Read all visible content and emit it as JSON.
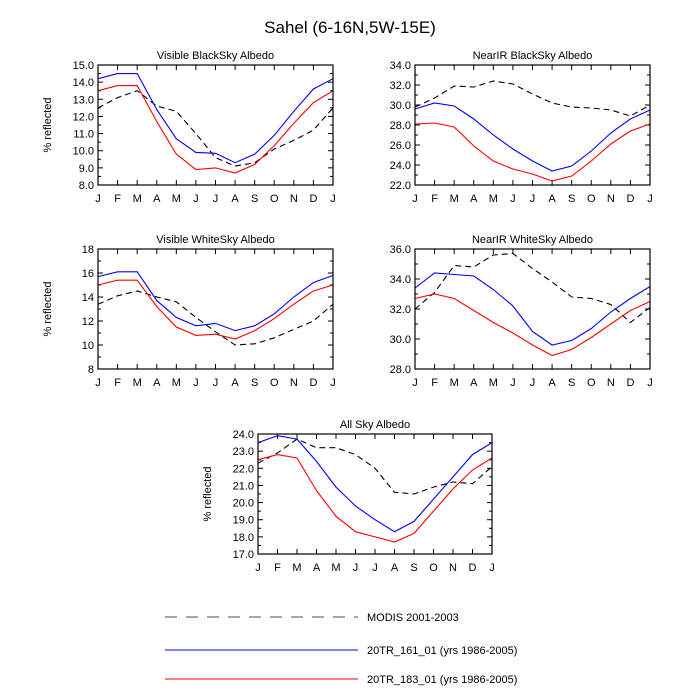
{
  "figure": {
    "title": "Sahel (6-16N,5W-15E)"
  },
  "legend": [
    {
      "name": "MODIS 2001-2003",
      "color": "#000000",
      "dash": "dashed"
    },
    {
      "name": "20TR_161_01 (yrs 1986-2005)",
      "color": "#0000ff",
      "dash": "solid"
    },
    {
      "name": "20TR_183_01 (yrs 1986-2005)",
      "color": "#ff0000",
      "dash": "solid"
    }
  ],
  "chart_data": [
    {
      "type": "line",
      "title": "Visible BlackSky Albedo",
      "ylabel": "% reflected",
      "categories": [
        "J",
        "F",
        "M",
        "A",
        "M",
        "J",
        "J",
        "A",
        "S",
        "O",
        "N",
        "D",
        "J"
      ],
      "ylim": [
        8.0,
        15.0
      ],
      "yticks": [
        "8.0",
        "9.0",
        "10.0",
        "11.0",
        "12.0",
        "13.0",
        "14.0",
        "15.0"
      ],
      "series": [
        {
          "name": "MODIS 2001-2003",
          "values": [
            12.5,
            13.1,
            13.5,
            12.6,
            12.3,
            11.0,
            9.6,
            9.1,
            9.3,
            10.1,
            10.6,
            11.2,
            12.5
          ]
        },
        {
          "name": "20TR_161_01 (yrs 1986-2005)",
          "values": [
            14.2,
            14.5,
            14.5,
            12.4,
            10.7,
            9.9,
            9.85,
            9.3,
            9.8,
            10.9,
            12.3,
            13.6,
            14.2
          ]
        },
        {
          "name": "20TR_183_01 (yrs 1986-2005)",
          "values": [
            13.5,
            13.8,
            13.8,
            11.7,
            9.8,
            8.9,
            9.0,
            8.7,
            9.2,
            10.3,
            11.6,
            12.8,
            13.5
          ]
        }
      ]
    },
    {
      "type": "line",
      "title": "NearIR BlackSky Albedo",
      "ylabel": "",
      "categories": [
        "J",
        "F",
        "M",
        "A",
        "M",
        "J",
        "J",
        "A",
        "S",
        "O",
        "N",
        "D",
        "J"
      ],
      "ylim": [
        22.0,
        34.0
      ],
      "yticks": [
        "22.0",
        "24.0",
        "26.0",
        "28.0",
        "30.0",
        "32.0",
        "34.0"
      ],
      "series": [
        {
          "name": "MODIS 2001-2003",
          "values": [
            29.8,
            30.7,
            31.9,
            31.8,
            32.4,
            32.1,
            31.1,
            30.2,
            29.8,
            29.7,
            29.5,
            28.9,
            30.0
          ]
        },
        {
          "name": "20TR_161_01 (yrs 1986-2005)",
          "values": [
            29.6,
            30.2,
            29.9,
            28.6,
            27.0,
            25.6,
            24.4,
            23.4,
            23.9,
            25.4,
            27.2,
            28.6,
            29.5
          ]
        },
        {
          "name": "20TR_183_01 (yrs 1986-2005)",
          "values": [
            28.1,
            28.2,
            27.8,
            25.9,
            24.4,
            23.6,
            23.1,
            22.4,
            22.9,
            24.4,
            26.1,
            27.4,
            28.1
          ]
        }
      ]
    },
    {
      "type": "line",
      "title": "Visible WhiteSky Albedo",
      "ylabel": "% reflected",
      "categories": [
        "J",
        "F",
        "M",
        "A",
        "M",
        "J",
        "J",
        "A",
        "S",
        "O",
        "N",
        "D",
        "J"
      ],
      "ylim": [
        8,
        18
      ],
      "yticks": [
        "8",
        "10",
        "12",
        "14",
        "16",
        "18"
      ],
      "series": [
        {
          "name": "MODIS 2001-2003",
          "values": [
            13.4,
            14.1,
            14.5,
            14.0,
            13.6,
            12.3,
            11.1,
            10.0,
            10.1,
            10.6,
            11.3,
            12.0,
            13.4
          ]
        },
        {
          "name": "20TR_161_01 (yrs 1986-2005)",
          "values": [
            15.7,
            16.1,
            16.1,
            13.7,
            12.3,
            11.6,
            11.8,
            11.2,
            11.6,
            12.6,
            14.0,
            15.2,
            15.8
          ]
        },
        {
          "name": "20TR_183_01 (yrs 1986-2005)",
          "values": [
            15.0,
            15.4,
            15.4,
            13.2,
            11.5,
            10.8,
            10.9,
            10.5,
            11.2,
            12.2,
            13.4,
            14.5,
            15.0
          ]
        }
      ]
    },
    {
      "type": "line",
      "title": "NearIR WhiteSky Albedo",
      "ylabel": "",
      "categories": [
        "J",
        "F",
        "M",
        "A",
        "M",
        "J",
        "J",
        "A",
        "S",
        "O",
        "N",
        "D",
        "J"
      ],
      "ylim": [
        28.0,
        36.0
      ],
      "yticks": [
        "28.0",
        "30.0",
        "32.0",
        "34.0",
        "36.0"
      ],
      "series": [
        {
          "name": "MODIS 2001-2003",
          "values": [
            32.0,
            33.1,
            34.9,
            34.8,
            35.6,
            35.7,
            34.7,
            33.8,
            32.8,
            32.7,
            32.3,
            31.1,
            32.1
          ]
        },
        {
          "name": "20TR_161_01 (yrs 1986-2005)",
          "values": [
            33.4,
            34.4,
            34.3,
            34.2,
            33.3,
            32.2,
            30.5,
            29.6,
            29.9,
            30.7,
            31.8,
            32.7,
            33.5
          ]
        },
        {
          "name": "20TR_183_01 (yrs 1986-2005)",
          "values": [
            32.7,
            33.0,
            32.7,
            31.9,
            31.1,
            30.4,
            29.6,
            28.9,
            29.3,
            30.1,
            31.0,
            31.9,
            32.5
          ]
        }
      ]
    },
    {
      "type": "line",
      "title": "All Sky Albedo",
      "ylabel": "% reflected",
      "categories": [
        "J",
        "F",
        "M",
        "A",
        "M",
        "J",
        "J",
        "A",
        "S",
        "O",
        "N",
        "D",
        "J"
      ],
      "ylim": [
        17.0,
        24.0
      ],
      "yticks": [
        "17.0",
        "18.0",
        "19.0",
        "20.0",
        "21.0",
        "22.0",
        "23.0",
        "24.0"
      ],
      "series": [
        {
          "name": "MODIS 2001-2003",
          "values": [
            22.3,
            22.9,
            23.7,
            23.2,
            23.2,
            22.8,
            22.0,
            20.6,
            20.5,
            20.9,
            21.2,
            21.1,
            22.1
          ]
        },
        {
          "name": "20TR_161_01 (yrs 1986-2005)",
          "values": [
            23.5,
            23.9,
            23.7,
            22.4,
            20.9,
            19.8,
            19.0,
            18.3,
            18.9,
            20.2,
            21.5,
            22.8,
            23.5
          ]
        },
        {
          "name": "20TR_183_01 (yrs 1986-2005)",
          "values": [
            22.5,
            22.8,
            22.6,
            20.7,
            19.2,
            18.3,
            18.0,
            17.7,
            18.2,
            19.5,
            20.8,
            21.9,
            22.6
          ]
        }
      ]
    }
  ]
}
